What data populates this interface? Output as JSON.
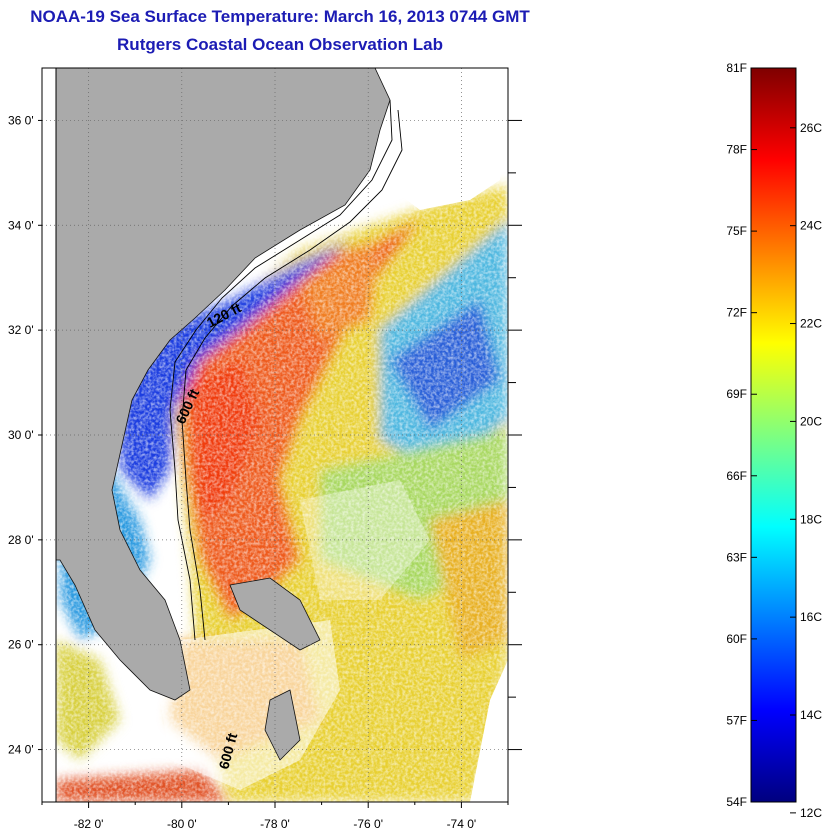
{
  "title": "NOAA-19 Sea Surface Temperature:  March 16, 2013 0744 GMT",
  "subtitle": "Rutgers Coastal Ocean Observation Lab",
  "map": {
    "lon_range": [
      -83,
      -73
    ],
    "lat_range": [
      23,
      37
    ],
    "lon_ticks": [
      -82,
      -80,
      -78,
      -76,
      -74
    ],
    "lat_ticks": [
      24,
      26,
      28,
      30,
      32,
      34,
      36
    ],
    "lon_tick_labels": [
      "-82 0'",
      "-80 0'",
      "-78 0'",
      "-76 0'",
      "-74 0'"
    ],
    "lat_tick_labels": [
      "24 0'",
      "26 0'",
      "28 0'",
      "30 0'",
      "32 0'",
      "34 0'",
      "36 0'"
    ],
    "grid": "dotted",
    "land_color": "#aaaaaa",
    "contour_labels": [
      "120 ft",
      "600 ft",
      "600 ft"
    ]
  },
  "colorbar": {
    "colors": [
      "#00007f",
      "#0000ff",
      "#007fff",
      "#00ffff",
      "#7fff7f",
      "#ffff00",
      "#ff7f00",
      "#ff0000",
      "#7f0000"
    ],
    "fahrenheit_labels": [
      "81F",
      "78F",
      "75F",
      "72F",
      "69F",
      "66F",
      "63F",
      "60F",
      "57F",
      "54F"
    ],
    "fahrenheit_values": [
      81,
      78,
      75,
      72,
      69,
      66,
      63,
      60,
      57,
      54
    ],
    "celsius_labels": [
      "26C",
      "24C",
      "22C",
      "20C",
      "18C",
      "16C",
      "14C",
      "12C"
    ],
    "celsius_values": [
      26,
      24,
      22,
      20,
      18,
      16,
      14,
      12
    ]
  }
}
